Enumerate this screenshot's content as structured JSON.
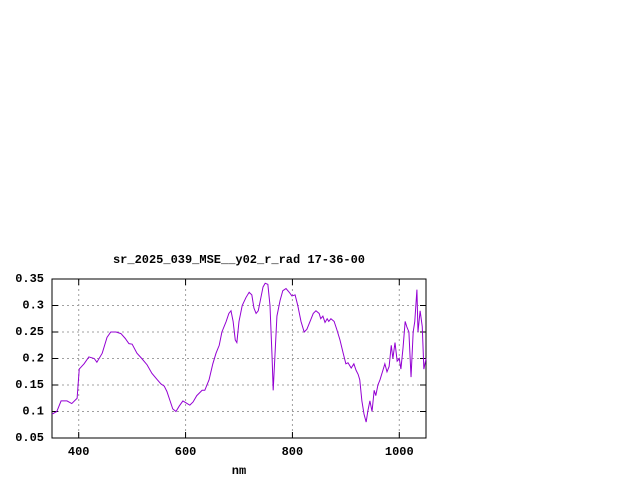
{
  "chart_data": {
    "type": "line",
    "title": "sr_2025_039_MSE__y02_r_rad 17-36-00",
    "xlabel": "nm",
    "xlim": [
      350,
      1050
    ],
    "xticks": [
      400,
      600,
      800,
      1000
    ],
    "ylim": [
      0.05,
      0.35
    ],
    "yticks": [
      0.05,
      0.1,
      0.15,
      0.2,
      0.25,
      0.3,
      0.35
    ],
    "grid": true,
    "x": [
      350,
      359,
      367,
      378,
      387,
      397,
      401,
      410,
      419,
      429,
      434,
      444,
      453,
      460,
      470,
      479,
      487,
      494,
      500,
      509,
      518,
      528,
      537,
      547,
      554,
      560,
      565,
      571,
      576,
      582,
      588,
      595,
      603,
      608,
      614,
      621,
      631,
      636,
      644,
      651,
      657,
      663,
      668,
      676,
      681,
      685,
      689,
      693,
      696,
      700,
      706,
      713,
      719,
      724,
      728,
      732,
      736,
      741,
      745,
      749,
      754,
      758,
      762,
      764,
      767,
      771,
      777,
      782,
      788,
      794,
      799,
      805,
      810,
      816,
      822,
      827,
      833,
      839,
      844,
      850,
      853,
      857,
      861,
      865,
      868,
      872,
      878,
      883,
      889,
      895,
      900,
      904,
      910,
      915,
      919,
      923,
      926,
      930,
      934,
      938,
      941,
      945,
      949,
      953,
      956,
      960,
      964,
      970,
      973,
      977,
      981,
      985,
      988,
      992,
      996,
      1000,
      1003,
      1007,
      1011,
      1014,
      1018,
      1022,
      1026,
      1029,
      1033,
      1035,
      1039,
      1043,
      1046,
      1050
    ],
    "series": [
      {
        "color": "#9400d3",
        "values": [
          0.095,
          0.1,
          0.12,
          0.12,
          0.115,
          0.125,
          0.18,
          0.19,
          0.203,
          0.2,
          0.193,
          0.21,
          0.24,
          0.25,
          0.25,
          0.247,
          0.238,
          0.228,
          0.227,
          0.21,
          0.2,
          0.188,
          0.172,
          0.16,
          0.152,
          0.148,
          0.138,
          0.12,
          0.105,
          0.1,
          0.11,
          0.12,
          0.115,
          0.112,
          0.118,
          0.13,
          0.14,
          0.14,
          0.16,
          0.19,
          0.21,
          0.225,
          0.25,
          0.27,
          0.285,
          0.29,
          0.27,
          0.235,
          0.23,
          0.27,
          0.3,
          0.315,
          0.325,
          0.32,
          0.295,
          0.285,
          0.29,
          0.315,
          0.335,
          0.342,
          0.34,
          0.3,
          0.2,
          0.14,
          0.2,
          0.28,
          0.31,
          0.328,
          0.332,
          0.325,
          0.318,
          0.32,
          0.3,
          0.27,
          0.25,
          0.255,
          0.27,
          0.285,
          0.29,
          0.285,
          0.275,
          0.28,
          0.268,
          0.275,
          0.27,
          0.275,
          0.27,
          0.255,
          0.235,
          0.21,
          0.19,
          0.192,
          0.182,
          0.19,
          0.178,
          0.17,
          0.16,
          0.12,
          0.095,
          0.08,
          0.1,
          0.12,
          0.1,
          0.14,
          0.13,
          0.15,
          0.16,
          0.18,
          0.19,
          0.175,
          0.185,
          0.225,
          0.2,
          0.23,
          0.195,
          0.2,
          0.18,
          0.22,
          0.27,
          0.26,
          0.25,
          0.165,
          0.25,
          0.27,
          0.33,
          0.25,
          0.29,
          0.26,
          0.18,
          0.2
        ]
      }
    ]
  }
}
